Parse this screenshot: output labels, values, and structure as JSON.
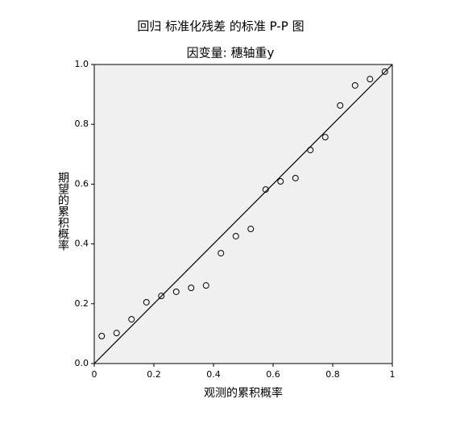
{
  "chart_data": {
    "type": "scatter",
    "title": "回归 标准化残差 的标准 P-P 图",
    "subtitle": "因变量: 穗轴重y",
    "xlabel": "观测的累积概率",
    "ylabel": "期望的累积概率",
    "x": [
      0.025,
      0.075,
      0.125,
      0.175,
      0.225,
      0.275,
      0.325,
      0.375,
      0.425,
      0.475,
      0.525,
      0.575,
      0.625,
      0.675,
      0.725,
      0.775,
      0.825,
      0.875,
      0.925,
      0.975
    ],
    "values": [
      0.092,
      0.102,
      0.148,
      0.205,
      0.226,
      0.24,
      0.253,
      0.261,
      0.369,
      0.426,
      0.45,
      0.582,
      0.609,
      0.62,
      0.714,
      0.757,
      0.863,
      0.93,
      0.951,
      0.976
    ],
    "color": "#000000",
    "xlim": [
      0,
      1
    ],
    "xticks": [
      0,
      0.2,
      0.4,
      0.6,
      0.8,
      1
    ],
    "ylim": [
      0,
      1
    ],
    "yticks": [
      {
        "value": 0,
        "label": "0.0"
      },
      0.2,
      0.4,
      0.6,
      0.8,
      {
        "value": 1,
        "label": "1.0"
      }
    ],
    "grid": false
  }
}
